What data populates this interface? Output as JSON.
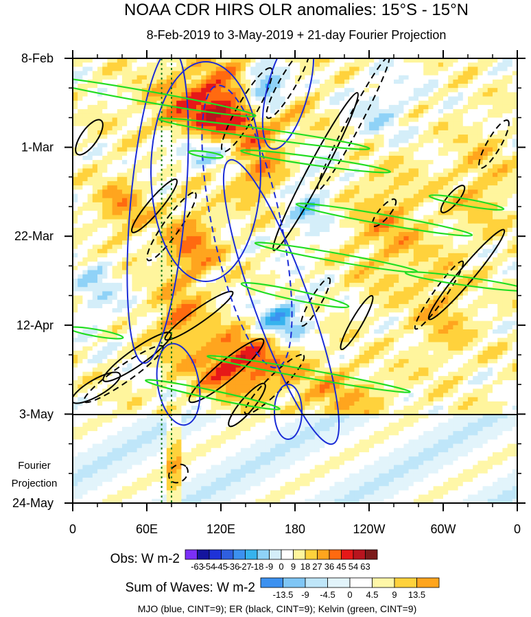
{
  "chart_data": {
    "type": "heatmap",
    "title": "NOAA CDR HIRS OLR anomalies: 15°S - 15°N",
    "subtitle": "8-Feb-2019 to 3-May-2019 + 21-day Fourier Projection",
    "x_ticks": [
      "0",
      "60E",
      "120E",
      "180",
      "120W",
      "60W",
      "0"
    ],
    "x_tick_degrees_east": [
      0,
      60,
      120,
      180,
      240,
      300,
      360
    ],
    "y_ticks": [
      "8-Feb",
      "1-Mar",
      "22-Mar",
      "12-Apr",
      "3-May",
      "24-May"
    ],
    "y_tick_day_index": [
      0,
      21,
      42,
      63,
      84,
      105
    ],
    "observation_end_day_index": 84,
    "projection_label": "Fourier Projection",
    "obs_colorbar": {
      "label": "Obs: W m-2",
      "levels": [
        "-63",
        "-54",
        "-45",
        "-36",
        "-27",
        "-18",
        "-9",
        "0",
        "9",
        "18",
        "27",
        "36",
        "45",
        "54",
        "63"
      ],
      "colors": [
        "#7b2ff7",
        "#14149e",
        "#1e32d8",
        "#2f5fe0",
        "#3c91f0",
        "#36b3ee",
        "#8fd2f7",
        "#d4eef9",
        "#ffffff",
        "#fff59d",
        "#ffd23c",
        "#ffa51e",
        "#ff6a10",
        "#e61818",
        "#b8141e",
        "#7c1a1a",
        "#e466b6"
      ]
    },
    "waves_colorbar": {
      "label": "Sum of Waves: W m-2",
      "levels": [
        "-13.5",
        "-9",
        "-4.5",
        "0",
        "4.5",
        "9",
        "13.5"
      ],
      "colors": [
        "#3c91f0",
        "#7fc6f5",
        "#bfe6f9",
        "#e2f4fb",
        "#ffffff",
        "#fff7a8",
        "#ffd23c",
        "#ffa51e"
      ]
    },
    "legend_text": "MJO (blue, CINT=9); ER (black, CINT=9); Kelvin (green, CINT=9)",
    "series": [
      {
        "name": "MJO",
        "color": "#1a2bd6",
        "cint": 9
      },
      {
        "name": "ER",
        "color": "#000000",
        "cint": 9
      },
      {
        "name": "Kelvin",
        "color": "#22dd22",
        "cint": 9
      }
    ],
    "reference_lines_degrees_east": [
      72,
      80
    ]
  }
}
